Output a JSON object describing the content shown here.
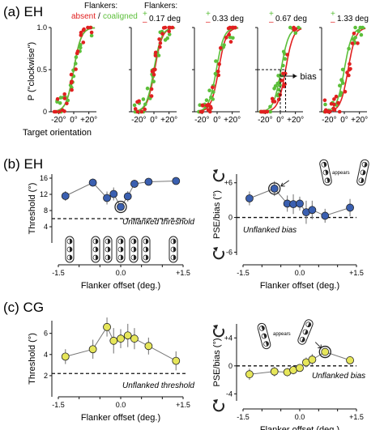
{
  "panel_a": {
    "label": "(a) EH",
    "flankers_label": "Flankers:",
    "absent_label": "absent",
    "slash": "/",
    "coaligned_label": "coaligned",
    "flankers_label2": "Flankers:",
    "conditions": [
      "0.17 deg",
      "0.33 deg",
      "0.67 deg",
      "1.33 deg"
    ],
    "plus_sign": "+",
    "minus_sign": "–",
    "ylabel": "P (\"clockwise\")",
    "xlabel": "Target orientation",
    "bias_label": "bias",
    "colors": {
      "red": "#e02020",
      "green": "#5cbf3a"
    }
  },
  "panel_b": {
    "label": "(b) EH",
    "left_annotation": "Unflanked threshold",
    "right_annotation": "Unflanked bias",
    "appears_label": "appears",
    "marker_color": "#3a5fb0"
  },
  "panel_c": {
    "label": "(c) CG",
    "left_annotation": "Unflanked threshold",
    "right_annotation": "Unflanked bias",
    "appears_label": "appears",
    "marker_color": "#e6e65a"
  },
  "chart_data": [
    {
      "type": "scatter",
      "panel": "a",
      "subplots": 5,
      "x_ticks": [
        "-20°",
        "0°",
        "+20°"
      ],
      "y_ticks": [
        "0",
        "0.5",
        "1.0"
      ],
      "ylim": [
        0,
        1
      ],
      "xlim": [
        -30,
        30
      ],
      "series": [
        {
          "name": "absent",
          "color": "#e02020"
        },
        {
          "name": "coaligned",
          "color": "#5cbf3a"
        }
      ]
    },
    {
      "type": "line",
      "panel": "b-left",
      "xlabel": "Flanker offset (deg.)",
      "ylabel": "Threshold (°)",
      "x_ticks": [
        "-1.5",
        "-1.0",
        "-0.5",
        "0.0",
        "+0.5",
        "+1.0",
        "+1.5"
      ],
      "x_tick_labels_shown": [
        "-1.5",
        "0.0",
        "+1.5"
      ],
      "y_ticks": [
        "4",
        "8",
        "12",
        "16"
      ],
      "ylim": [
        0,
        17
      ],
      "baseline": 6,
      "x": [
        -1.33,
        -0.67,
        -0.33,
        -0.17,
        0.0,
        0.17,
        0.33,
        0.67,
        1.33
      ],
      "values": [
        11.6,
        14.9,
        11.1,
        12.1,
        8.9,
        11.5,
        14.6,
        15.1,
        15.3
      ],
      "err": [
        1.2,
        1.0,
        1.6,
        1.6,
        0.8,
        1.3,
        1.0,
        0.9,
        0.9
      ]
    },
    {
      "type": "line",
      "panel": "b-right",
      "xlabel": "Flanker offset (deg.)",
      "ylabel": "PSE/bias (°)",
      "x_ticks": [
        "-1.5",
        "-1.0",
        "-0.5",
        "0.0",
        "+0.5",
        "+1.0",
        "+1.5"
      ],
      "x_tick_labels_shown": [
        "-1.5",
        "0.0",
        "+1.5"
      ],
      "y_ticks": [
        "+6",
        "0",
        "-6"
      ],
      "ylim": [
        -6.5,
        7.5
      ],
      "baseline": 0,
      "x": [
        -1.33,
        -0.67,
        -0.33,
        -0.17,
        0.0,
        0.17,
        0.33,
        0.67,
        1.33
      ],
      "values": [
        3.3,
        5.0,
        2.4,
        2.3,
        2.4,
        0.9,
        1.3,
        0.3,
        1.7
      ],
      "err": [
        1.2,
        1.3,
        1.4,
        1.7,
        1.2,
        2.0,
        1.6,
        1.2,
        1.5
      ]
    },
    {
      "type": "line",
      "panel": "c-left",
      "xlabel": "Flanker offset (deg.)",
      "ylabel": "Threshold (°)",
      "x_ticks": [
        "-1.5",
        "-1.0",
        "-0.5",
        "0.0",
        "+0.5",
        "+1.0",
        "+1.5"
      ],
      "x_tick_labels_shown": [
        "-1.5",
        "0.0",
        "+1.5"
      ],
      "y_ticks": [
        "2",
        "4",
        "6"
      ],
      "ylim": [
        0,
        7.2
      ],
      "baseline": 2.2,
      "x": [
        -1.33,
        -0.67,
        -0.33,
        -0.17,
        0.0,
        0.17,
        0.33,
        0.67,
        1.33
      ],
      "values": [
        3.8,
        4.5,
        6.6,
        5.3,
        5.5,
        5.8,
        5.5,
        4.8,
        3.4
      ],
      "err": [
        0.7,
        0.9,
        0.9,
        1.2,
        0.9,
        1.1,
        1.0,
        0.8,
        0.9
      ]
    },
    {
      "type": "line",
      "panel": "c-right",
      "xlabel": "Flanker offset (deg.)",
      "ylabel": "PSE/bias (°)",
      "x_ticks": [
        "-1.5",
        "-1.0",
        "-0.5",
        "0.0",
        "+0.5",
        "+1.0",
        "+1.5"
      ],
      "x_tick_labels_shown": [
        "-1.5",
        "0.0",
        "+1.5"
      ],
      "y_ticks": [
        "+4",
        "0",
        "-4"
      ],
      "ylim": [
        -5,
        6
      ],
      "baseline": 0,
      "x": [
        -1.33,
        -0.67,
        -0.33,
        -0.17,
        0.0,
        0.17,
        0.33,
        0.67,
        1.33
      ],
      "values": [
        -1.2,
        -0.8,
        -0.9,
        -0.6,
        -0.3,
        0.5,
        0.9,
        2.0,
        0.8
      ],
      "err": [
        0.8,
        0.7,
        0.6,
        0.6,
        0.5,
        0.7,
        0.8,
        0.5,
        0.6
      ]
    }
  ]
}
